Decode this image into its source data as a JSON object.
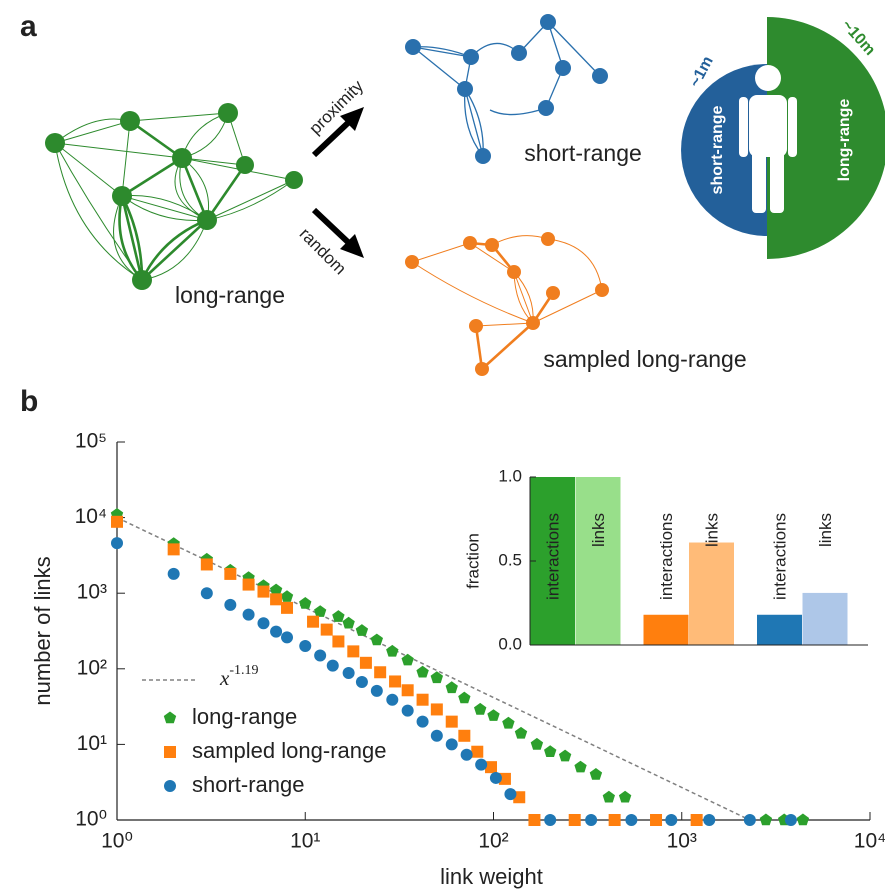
{
  "panel_labels": [
    "a",
    "b"
  ],
  "diagram": {
    "arrows": [
      {
        "label": "proximity"
      },
      {
        "label": "random"
      }
    ],
    "networks": [
      {
        "label": "long-range"
      },
      {
        "label": "short-range"
      },
      {
        "label": "sampled long-range"
      }
    ],
    "person": {
      "left": {
        "label": "short-range",
        "distance": "~1m"
      },
      "right": {
        "label": "long-range",
        "distance": "~10m"
      }
    }
  },
  "chart_data": [
    {
      "type": "scatter",
      "xlabel": "link weight",
      "ylabel": "number of links",
      "xscale": "log",
      "yscale": "log",
      "xlim": [
        1,
        10000
      ],
      "ylim": [
        1,
        100000
      ],
      "xticks": [
        {
          "value": 1,
          "label": "10⁰"
        },
        {
          "value": 10,
          "label": "10¹"
        },
        {
          "value": 100,
          "label": "10²"
        },
        {
          "value": 1000,
          "label": "10³"
        },
        {
          "value": 10000,
          "label": "10⁴"
        }
      ],
      "yticks": [
        {
          "value": 1,
          "label": "10⁰"
        },
        {
          "value": 10,
          "label": "10¹"
        },
        {
          "value": 100,
          "label": "10²"
        },
        {
          "value": 1000,
          "label": "10³"
        },
        {
          "value": 10000,
          "label": "10⁴"
        },
        {
          "value": 100000,
          "label": "10⁵"
        }
      ],
      "legend": "lower left",
      "fit": {
        "label": "x",
        "exponent": -1.19,
        "coefficient": 10000,
        "color": "#808080"
      },
      "series": [
        {
          "name": "long-range",
          "marker": "pentagon",
          "color": "#2ca02c",
          "x": [
            1,
            2,
            3,
            4,
            5,
            6,
            7,
            8,
            10,
            12,
            15,
            17,
            20,
            24,
            29,
            35,
            42,
            50,
            60,
            70,
            85,
            100,
            120,
            140,
            170,
            200,
            240,
            290,
            350,
            410,
            500,
            2800,
            3500,
            4400
          ],
          "values": [
            11000,
            4500,
            2800,
            2000,
            1600,
            1250,
            1100,
            900,
            730,
            570,
            490,
            400,
            320,
            240,
            170,
            130,
            90,
            76,
            56,
            41,
            29,
            24,
            19,
            14,
            10,
            8,
            7,
            5,
            4,
            2,
            2,
            1,
            1,
            1
          ]
        },
        {
          "name": "sampled long-range",
          "marker": "square",
          "color": "#ff7f0e",
          "x": [
            1,
            2,
            3,
            4,
            5,
            6,
            7,
            8,
            11,
            13,
            15,
            18,
            21,
            25,
            30,
            35,
            42,
            50,
            60,
            70,
            82,
            97,
            115,
            137,
            165,
            270,
            440,
            730,
            1200
          ],
          "values": [
            8800,
            3800,
            2400,
            1800,
            1300,
            1050,
            830,
            640,
            420,
            330,
            230,
            170,
            120,
            90,
            68,
            52,
            39,
            29,
            20,
            13,
            8,
            5,
            3.5,
            2,
            1,
            1,
            1,
            1,
            1
          ]
        },
        {
          "name": "short-range",
          "marker": "circle",
          "color": "#1f77b4",
          "x": [
            1,
            2,
            3,
            4,
            5,
            6,
            7,
            8,
            10,
            12,
            14,
            17,
            20,
            24,
            29,
            35,
            42,
            50,
            60,
            72,
            86,
            103,
            123,
            200,
            330,
            540,
            880,
            1400,
            2300,
            3800
          ],
          "values": [
            4600,
            1800,
            1000,
            700,
            520,
            400,
            310,
            260,
            200,
            150,
            110,
            88,
            67,
            51,
            39,
            28,
            20,
            13,
            10,
            7.3,
            5.4,
            3.6,
            2.2,
            1,
            1,
            1,
            1,
            1,
            1,
            1
          ]
        }
      ]
    },
    {
      "type": "bar",
      "ylabel": "fraction",
      "ylim": [
        0,
        1
      ],
      "yticks": [
        {
          "value": 0,
          "label": "0.0"
        },
        {
          "value": 0.5,
          "label": "0.5"
        },
        {
          "value": 1,
          "label": "1.0"
        }
      ],
      "categories": [
        "interactions",
        "links",
        "interactions",
        "links",
        "interactions",
        "links"
      ],
      "values": [
        1,
        1,
        0.18,
        0.61,
        0.18,
        0.31
      ],
      "colors": [
        "#2ca02c",
        "#98df8a",
        "#ff7f0e",
        "#ffbb78",
        "#1f77b4",
        "#aec7e8"
      ]
    }
  ]
}
